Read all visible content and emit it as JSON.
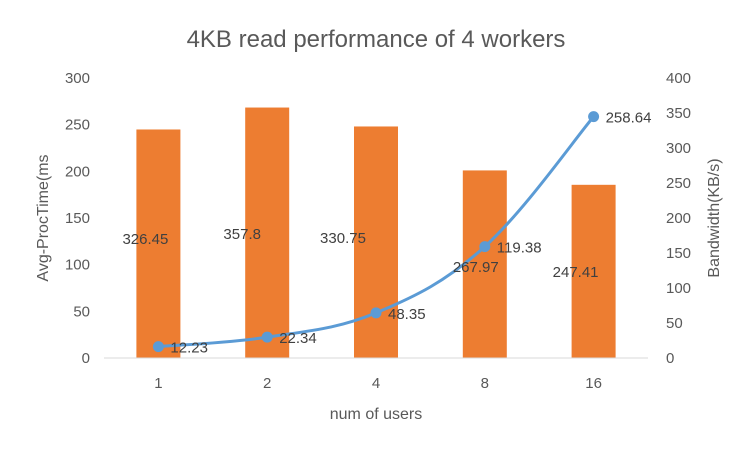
{
  "chart_data": {
    "type": "bar+line",
    "title": "4KB read performance of  4 workers",
    "xlabel": "num of users",
    "ylabel_left": "Avg-ProcTime(ms",
    "ylabel_right": "Bandwidth(KB/s)",
    "categories": [
      "1",
      "2",
      "4",
      "8",
      "16"
    ],
    "ylim_left": [
      0,
      300
    ],
    "yticks_left": [
      0,
      50,
      100,
      150,
      200,
      250,
      300
    ],
    "ylim_right": [
      0,
      400
    ],
    "yticks_right": [
      0,
      50,
      100,
      150,
      200,
      250,
      300,
      350,
      400
    ],
    "series": [
      {
        "type": "bar",
        "axis": "right",
        "values": [
          326.45,
          357.8,
          330.75,
          267.97,
          247.41
        ],
        "labels": [
          "326.45",
          "357.8",
          "330.75",
          "267.97",
          "247.41"
        ],
        "color": "#ED7D31"
      },
      {
        "type": "line",
        "axis": "left",
        "values": [
          12.23,
          22.34,
          48.35,
          119.38,
          258.64
        ],
        "labels": [
          "12.23",
          "22.34",
          "48.35",
          "119.38",
          "258.64"
        ],
        "color": "#5B9BD5"
      }
    ],
    "grid": false,
    "legend": "none"
  }
}
